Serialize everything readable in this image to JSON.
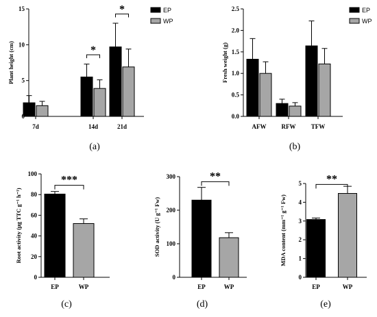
{
  "chart_data": [
    {
      "type": "bar",
      "panel_label": "(a)",
      "ylabel": "Plant height (cm)",
      "categories": [
        "7d",
        "14d",
        "21d"
      ],
      "series": [
        {
          "name": "EP",
          "values": [
            1.9,
            5.5,
            9.7
          ],
          "errors": [
            1.0,
            1.8,
            3.3
          ],
          "color": "#000000"
        },
        {
          "name": "WP",
          "values": [
            1.5,
            3.9,
            6.9
          ],
          "errors": [
            0.6,
            1.2,
            2.5
          ],
          "color": "#a6a6a6"
        }
      ],
      "ylim": [
        0,
        15
      ],
      "yticks": [
        0,
        5,
        10,
        15
      ],
      "significance": [
        {
          "category_index": 1,
          "label": "*",
          "bracket_value": 8.6
        },
        {
          "category_index": 2,
          "label": "*",
          "bracket_value": 14.3
        }
      ],
      "legend": "top-right"
    },
    {
      "type": "bar",
      "panel_label": "(b)",
      "ylabel": "Fresh weight (g)",
      "categories": [
        "AFW",
        "RFW",
        "TFW"
      ],
      "series": [
        {
          "name": "EP",
          "values": [
            1.33,
            0.3,
            1.64
          ],
          "errors": [
            0.48,
            0.1,
            0.58
          ],
          "color": "#000000"
        },
        {
          "name": "WP",
          "values": [
            1.0,
            0.24,
            1.22
          ],
          "errors": [
            0.27,
            0.08,
            0.36
          ],
          "color": "#a6a6a6"
        }
      ],
      "ylim": [
        0,
        2.5
      ],
      "yticks": [
        "0.0",
        "0.5",
        "1.0",
        "1.5",
        "2.0",
        "2.5"
      ],
      "legend": "top-right"
    },
    {
      "type": "bar",
      "panel_label": "(c)",
      "ylabel": "Root activity (μg TTC g⁻¹ h⁻¹)",
      "categories": [
        "EP",
        "WP"
      ],
      "values": [
        80.5,
        52
      ],
      "errors": [
        2.5,
        4.5
      ],
      "colors": [
        "#000000",
        "#a6a6a6"
      ],
      "ylim": [
        0,
        100
      ],
      "yticks": [
        0,
        20,
        40,
        60,
        80,
        100
      ],
      "significance": [
        {
          "label": "***",
          "bracket_value": 89
        }
      ]
    },
    {
      "type": "bar",
      "panel_label": "(d)",
      "ylabel": "SOD activity (U g⁻¹ Fw)",
      "categories": [
        "EP",
        "WP"
      ],
      "values": [
        230,
        118
      ],
      "errors": [
        38,
        15
      ],
      "colors": [
        "#000000",
        "#a6a6a6"
      ],
      "ylim": [
        0,
        300
      ],
      "yticks": [
        0,
        100,
        200,
        300
      ],
      "significance": [
        {
          "label": "**",
          "bracket_value": 285
        }
      ]
    },
    {
      "type": "bar",
      "panel_label": "(e)",
      "ylabel": "MDA content (mm⁻¹ g⁻¹ Fw)",
      "categories": [
        "EP",
        "WP"
      ],
      "values": [
        3.08,
        4.47
      ],
      "errors": [
        0.08,
        0.38
      ],
      "colors": [
        "#000000",
        "#a6a6a6"
      ],
      "ylim": [
        0,
        5
      ],
      "yticks": [
        0,
        1,
        2,
        3,
        4,
        5
      ],
      "significance": [
        {
          "label": "**",
          "bracket_value": 4.95
        }
      ]
    }
  ]
}
